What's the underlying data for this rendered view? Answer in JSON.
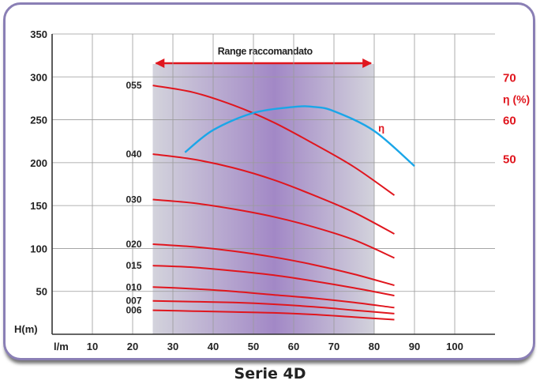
{
  "caption": "Serie 4D",
  "colors": {
    "frame": "#8a7fb5",
    "grid": "#9a9a9a",
    "curve": "#e0161e",
    "efficiency": "#1aa6e8",
    "range_edge": "#d3d3dc",
    "range_center": "#a288c6",
    "label_red": "#e0161e",
    "text": "#222222"
  },
  "chart_data": {
    "type": "line",
    "xlabel": "l/m",
    "ylabel": "H (m)",
    "y2label": "η (%)",
    "xlim": [
      0,
      110
    ],
    "ylim": [
      0,
      350
    ],
    "x_ticks": [
      10,
      20,
      30,
      40,
      50,
      60,
      70,
      80,
      90,
      100
    ],
    "y_ticks": [
      50,
      100,
      150,
      200,
      250,
      300,
      350
    ],
    "y2_ticks": [
      {
        "label": "70",
        "at_h": 300
      },
      {
        "label": "60",
        "at_h": 250
      },
      {
        "label": "50",
        "at_h": 205
      }
    ],
    "grid": true,
    "recommended_range": {
      "label": "Range raccomandato",
      "x_from": 25,
      "x_to": 80
    },
    "series": [
      {
        "name": "055",
        "x": [
          25,
          35,
          45,
          55,
          65,
          75,
          85
        ],
        "values": [
          290,
          282,
          267,
          247,
          222,
          195,
          162
        ]
      },
      {
        "name": "040",
        "x": [
          25,
          35,
          45,
          55,
          65,
          75,
          85
        ],
        "values": [
          210,
          204,
          194,
          180,
          162,
          142,
          117
        ]
      },
      {
        "name": "030",
        "x": [
          25,
          35,
          45,
          55,
          65,
          75,
          85
        ],
        "values": [
          157,
          153,
          146,
          137,
          125,
          110,
          89
        ]
      },
      {
        "name": "020",
        "x": [
          25,
          35,
          45,
          55,
          65,
          75,
          85
        ],
        "values": [
          105,
          102,
          97,
          90,
          81,
          70,
          57
        ]
      },
      {
        "name": "015",
        "x": [
          25,
          35,
          45,
          55,
          65,
          75,
          85
        ],
        "values": [
          80,
          78,
          74,
          69,
          62,
          54,
          45
        ]
      },
      {
        "name": "010",
        "x": [
          25,
          35,
          45,
          55,
          65,
          75,
          85
        ],
        "values": [
          55,
          53,
          50,
          46,
          42,
          37,
          31
        ]
      },
      {
        "name": "007",
        "x": [
          25,
          35,
          45,
          55,
          65,
          75,
          85
        ],
        "values": [
          39,
          38,
          37,
          35,
          32,
          28,
          24
        ]
      },
      {
        "name": "006",
        "x": [
          25,
          35,
          45,
          55,
          65,
          75,
          85
        ],
        "values": [
          28,
          27,
          26,
          25,
          23,
          20,
          17
        ]
      }
    ],
    "efficiency": {
      "name": "η",
      "x": [
        33,
        40,
        50,
        60,
        65,
        70,
        80,
        90
      ],
      "values": [
        212,
        238,
        258,
        265,
        265,
        260,
        237,
        196
      ]
    }
  }
}
